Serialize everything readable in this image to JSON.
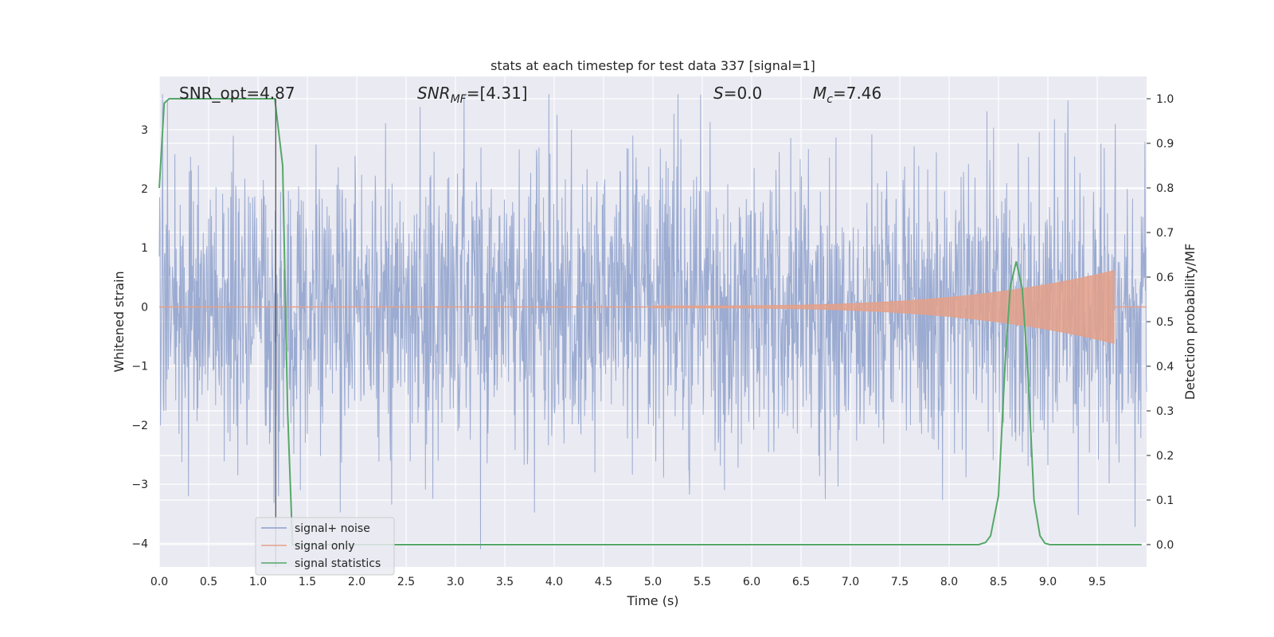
{
  "chart_data": {
    "type": "line",
    "title": "stats at each timestep for test data 337 [signal=1]",
    "xlabel": "Time (s)",
    "ylabel": "Whitened strain",
    "y2label": "Detection probability/MF",
    "xlim": [
      0.0,
      10.0
    ],
    "ylim": [
      -4.4,
      3.9
    ],
    "y2lim": [
      -0.05,
      1.05
    ],
    "x_ticks": [
      "0.0",
      "0.5",
      "1.0",
      "1.5",
      "2.0",
      "2.5",
      "3.0",
      "3.5",
      "4.0",
      "4.5",
      "5.0",
      "5.5",
      "6.0",
      "6.5",
      "7.0",
      "7.5",
      "8.0",
      "8.5",
      "9.0",
      "9.5"
    ],
    "y_ticks": [
      "3",
      "2",
      "1",
      "0",
      "−1",
      "−2",
      "−3",
      "−4"
    ],
    "y2_ticks": [
      "1.0",
      "0.9",
      "0.8",
      "0.7",
      "0.6",
      "0.5",
      "0.4",
      "0.3",
      "0.2",
      "0.1",
      "0.0"
    ],
    "grid": true,
    "legend_position": "lower-left",
    "annotations": {
      "snr_opt": "SNR_opt=4.87",
      "snr_mf_prefix": "SNR",
      "snr_mf_sub": "MF",
      "snr_mf_value": "=[4.31]",
      "s_var": "S",
      "s_value": "=0.0",
      "mc_var": "M",
      "mc_sub": "c",
      "mc_value": "=7.46"
    },
    "vline_x": 1.18,
    "series": [
      {
        "name": "signal+ noise",
        "color": "#8da0cb",
        "axis": "left",
        "kind": "noisy strain",
        "amplitude_sd": 1.2,
        "range": [
          -4.1,
          3.6
        ]
      },
      {
        "name": "signal only",
        "color": "#e5a088",
        "axis": "left",
        "kind": "chirp",
        "x_start": 5.0,
        "x_end": 9.67,
        "peak_amplitude": 0.6
      },
      {
        "name": "signal statistics",
        "color": "#55a868",
        "axis": "right",
        "x": [
          0.0,
          0.05,
          0.1,
          0.2,
          0.4,
          0.6,
          0.8,
          1.0,
          1.17,
          1.25,
          1.3,
          1.35,
          1.5,
          2.0,
          3.0,
          4.0,
          5.0,
          6.0,
          7.0,
          8.0,
          8.3,
          8.37,
          8.42,
          8.5,
          8.57,
          8.62,
          8.68,
          8.74,
          8.8,
          8.86,
          8.92,
          8.97,
          9.02,
          9.1,
          9.5,
          9.95
        ],
        "y": [
          0.8,
          0.99,
          1.0,
          1.0,
          1.0,
          1.0,
          1.0,
          1.0,
          1.0,
          0.85,
          0.3,
          0.0,
          0.0,
          0.0,
          0.0,
          0.0,
          0.0,
          0.0,
          0.0,
          0.0,
          0.0,
          0.005,
          0.02,
          0.11,
          0.42,
          0.58,
          0.635,
          0.575,
          0.38,
          0.1,
          0.02,
          0.003,
          0.0,
          0.0,
          0.0,
          0.0
        ]
      }
    ]
  }
}
